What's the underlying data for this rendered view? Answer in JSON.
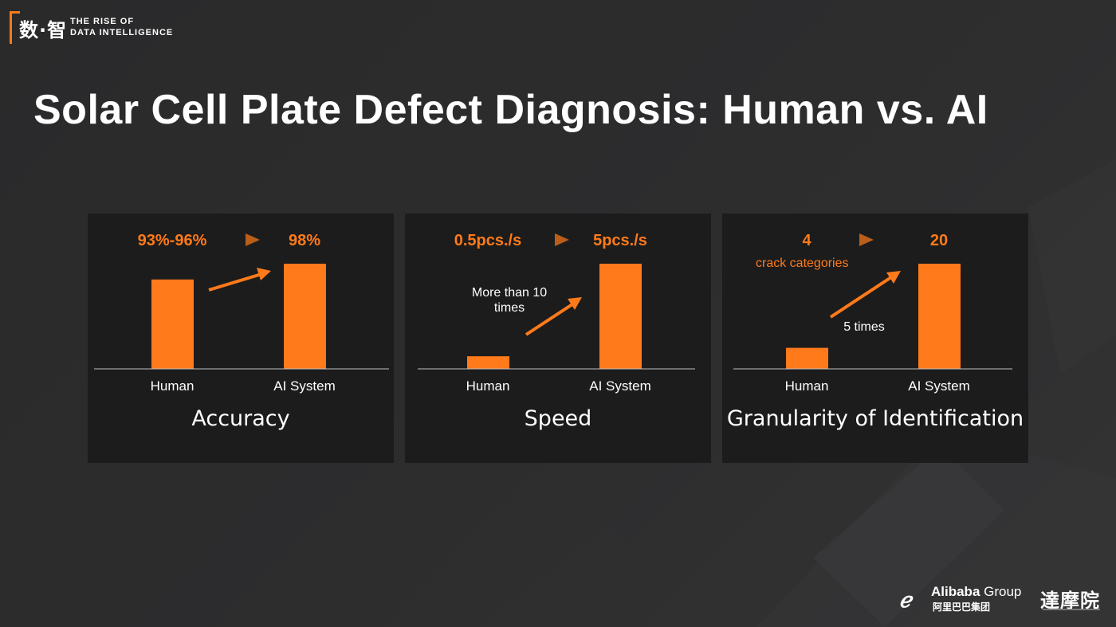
{
  "header": {
    "logo_cn": "数·智",
    "logo_en_line1": "THE RISE OF",
    "logo_en_line2": "DATA INTELLIGENCE"
  },
  "title": "Solar Cell Plate Defect Diagnosis: Human vs. AI",
  "colors": {
    "accent": "#ff7a1a",
    "panel_bg": "#1c1c1c",
    "page_bg": "#2d2d2e"
  },
  "panels": [
    {
      "caption": "Accuracy",
      "from_value": "93%-96%",
      "to_value": "98%",
      "x_labels": [
        "Human",
        "AI System"
      ],
      "bar_levels": [
        0.85,
        1.0
      ],
      "annotation": ""
    },
    {
      "caption": "Speed",
      "from_value": "0.5pcs./s",
      "to_value": "5pcs./s",
      "x_labels": [
        "Human",
        "AI System"
      ],
      "bar_levels": [
        0.12,
        1.0
      ],
      "annotation_line1": "More than 10",
      "annotation_line2": "times"
    },
    {
      "caption": "Granularity of Identification",
      "from_value": "4",
      "from_subtext": "crack categories",
      "to_value": "20",
      "x_labels": [
        "Human",
        "AI System"
      ],
      "bar_levels": [
        0.2,
        1.0
      ],
      "annotation": "5 times"
    }
  ],
  "footer": {
    "alibaba_en": "Alibaba",
    "alibaba_group": "Group",
    "alibaba_cn": "阿里巴巴集团",
    "damo": "達摩院"
  }
}
